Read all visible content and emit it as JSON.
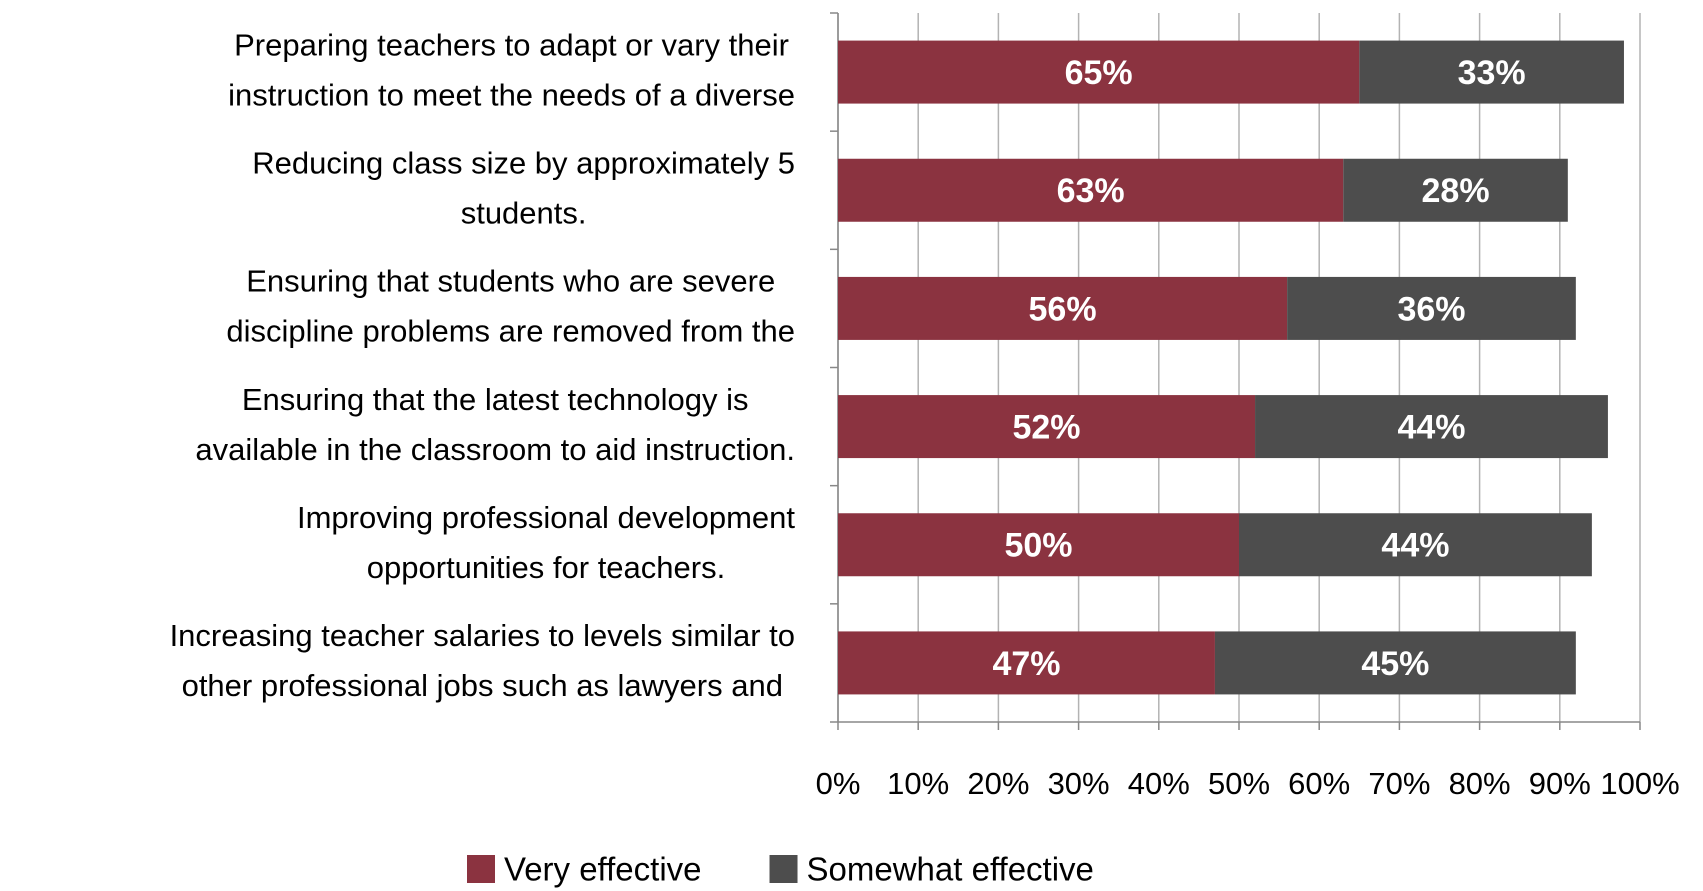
{
  "chart_data": {
    "type": "stacked_barh",
    "categories": [
      [
        "Preparing teachers to adapt or vary their",
        "instruction to meet the needs of a diverse"
      ],
      [
        "Reducing class size by approximately 5",
        "students."
      ],
      [
        "Ensuring that students who are severe",
        "discipline problems are removed from the"
      ],
      [
        "Ensuring that the latest technology is",
        "available in the classroom to aid instruction."
      ],
      [
        "Improving professional development",
        "opportunities for teachers."
      ],
      [
        "Increasing teacher salaries to levels similar to",
        "other professional jobs such as lawyers and"
      ]
    ],
    "series": [
      {
        "name": "Very effective",
        "color": "#8b3340",
        "values": [
          65,
          63,
          56,
          52,
          50,
          47
        ],
        "value_labels": [
          "65%",
          "63%",
          "56%",
          "52%",
          "50%",
          "47%"
        ]
      },
      {
        "name": "Somewhat effective",
        "color": "#4d4d4d",
        "values": [
          33,
          28,
          36,
          44,
          44,
          45
        ],
        "value_labels": [
          "33%",
          "28%",
          "36%",
          "44%",
          "44%",
          "45%"
        ]
      }
    ],
    "xlim": [
      0,
      100
    ],
    "xticks": [
      {
        "value": 0,
        "label": "0%"
      },
      {
        "value": 10,
        "label": "10%"
      },
      {
        "value": 20,
        "label": "20%"
      },
      {
        "value": 30,
        "label": "30%"
      },
      {
        "value": 40,
        "label": "40%"
      },
      {
        "value": 50,
        "label": "50%"
      },
      {
        "value": 60,
        "label": "60%"
      },
      {
        "value": 70,
        "label": "70%"
      },
      {
        "value": 80,
        "label": "80%"
      },
      {
        "value": 90,
        "label": "90%"
      },
      {
        "value": 100,
        "label": "100%"
      }
    ],
    "grid": true
  }
}
